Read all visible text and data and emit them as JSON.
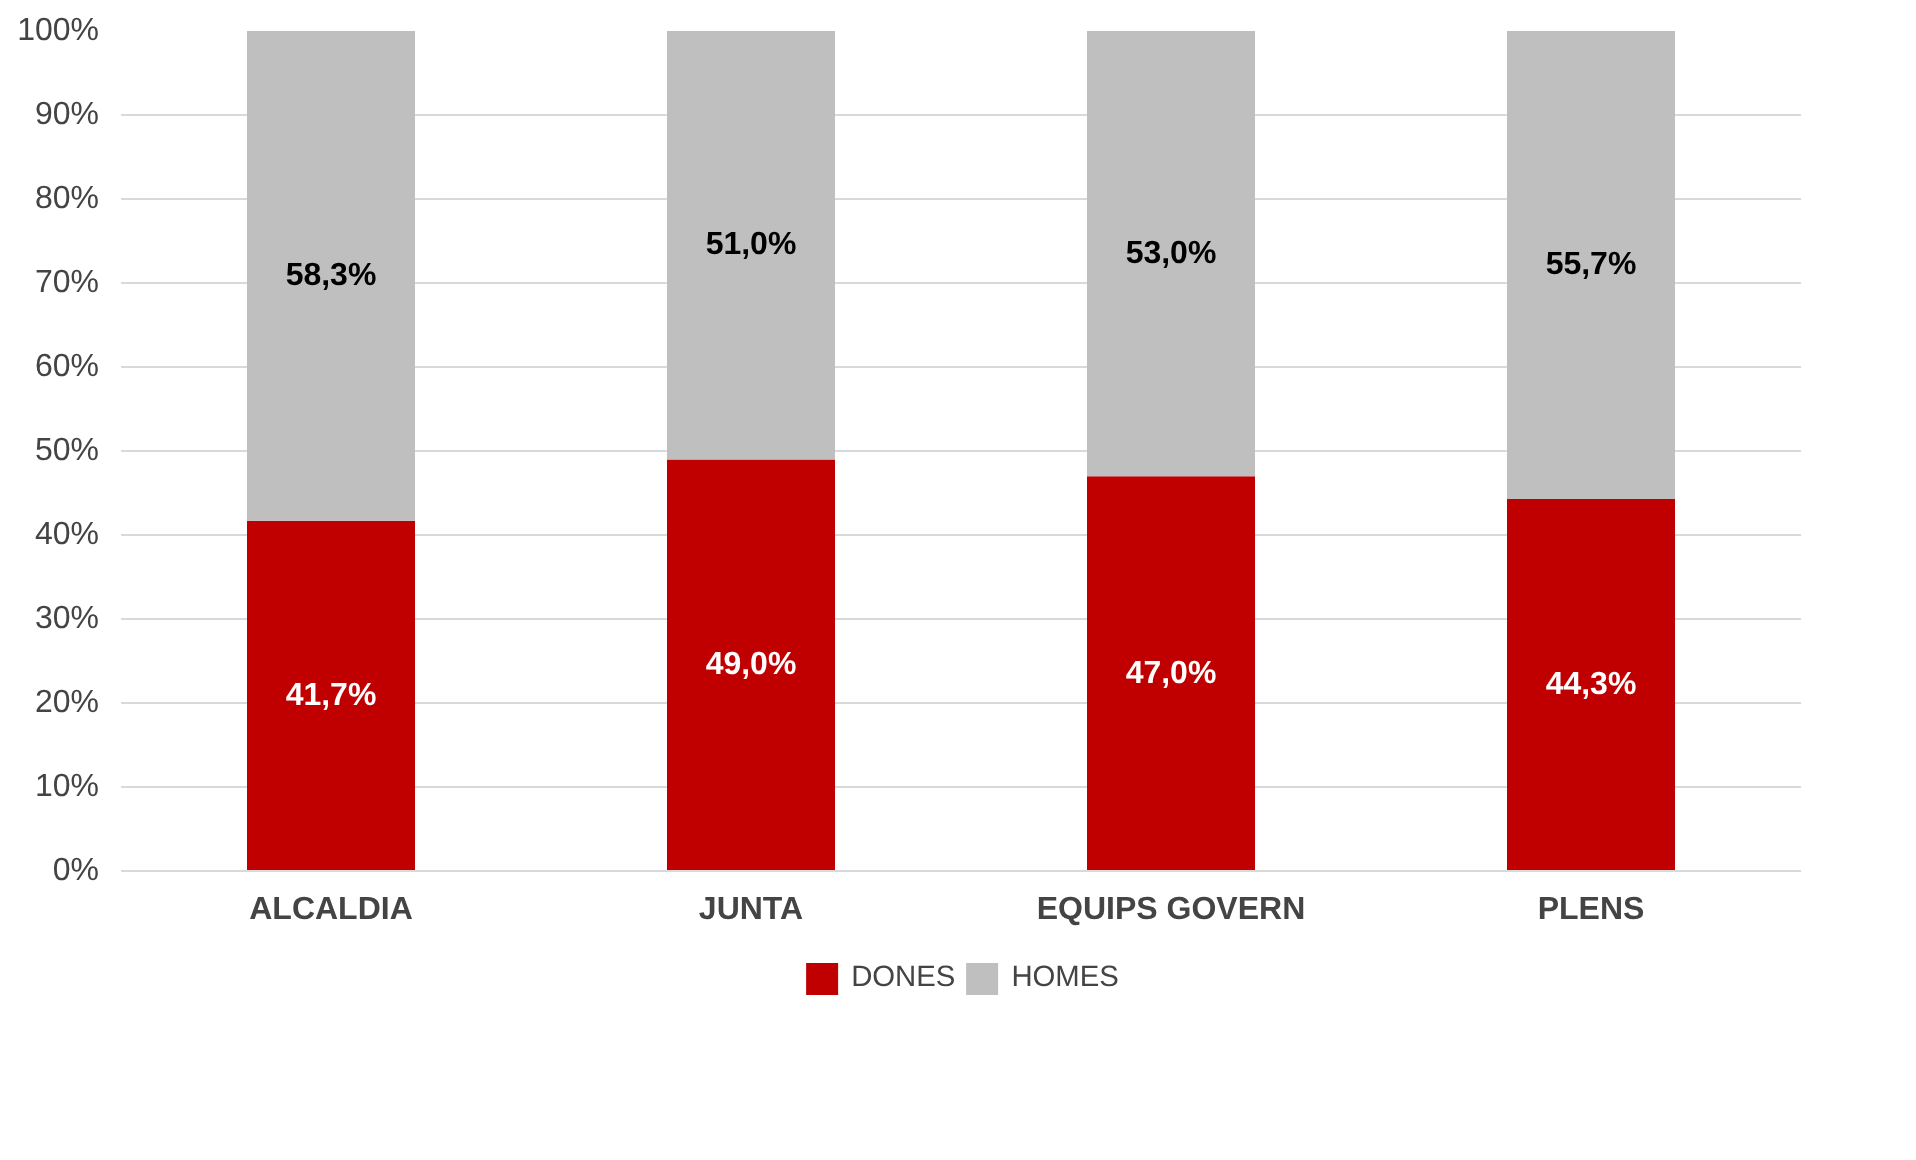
{
  "chart_data": {
    "type": "bar",
    "stacked": true,
    "categories": [
      "ALCALDIA",
      "JUNTA",
      "EQUIPS GOVERN",
      "PLENS"
    ],
    "series": [
      {
        "name": "DONES",
        "color": "#c00000",
        "values": [
          41.7,
          49.0,
          47.0,
          44.3
        ],
        "value_labels": [
          "41,7%",
          "49,0%",
          "47,0%",
          "44,3%"
        ]
      },
      {
        "name": "HOMES",
        "color": "#bfbfbf",
        "values": [
          58.3,
          51.0,
          53.0,
          55.7
        ],
        "value_labels": [
          "58,3%",
          "51,0%",
          "53,0%",
          "55,7%"
        ]
      }
    ],
    "ylim": [
      0,
      100
    ],
    "yticks": [
      {
        "value": 0,
        "label": "0%"
      },
      {
        "value": 10,
        "label": "10%"
      },
      {
        "value": 20,
        "label": "20%"
      },
      {
        "value": 30,
        "label": "30%"
      },
      {
        "value": 40,
        "label": "40%"
      },
      {
        "value": 50,
        "label": "50%"
      },
      {
        "value": 60,
        "label": "60%"
      },
      {
        "value": 70,
        "label": "70%"
      },
      {
        "value": 80,
        "label": "80%"
      },
      {
        "value": 90,
        "label": "90%"
      },
      {
        "value": 100,
        "label": "100%"
      }
    ],
    "grid": "y",
    "legend": "bottom"
  }
}
